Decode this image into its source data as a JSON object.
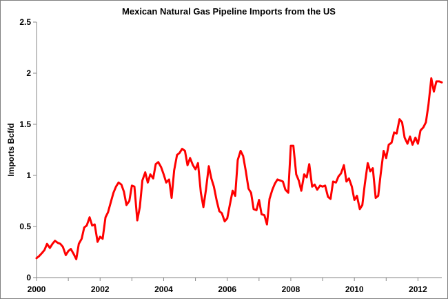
{
  "chart_data": {
    "type": "line",
    "title": "Mexican Natural Gas Pipeline Imports from the US",
    "xlabel": "",
    "ylabel": "Imports Bcf/d",
    "xlim": [
      2000,
      2012.75
    ],
    "ylim": [
      0,
      2.5
    ],
    "xticks": [
      "2000",
      "2002",
      "2004",
      "2006",
      "2008",
      "2010",
      "2012"
    ],
    "yticks": [
      "0",
      "0.5",
      "1",
      "1.5",
      "2",
      "2.5"
    ],
    "grid": false,
    "legend": "none",
    "series": [
      {
        "color": "#ff0000",
        "values": [
          [
            2000.0,
            0.19
          ],
          [
            2000.08,
            0.21
          ],
          [
            2000.17,
            0.24
          ],
          [
            2000.25,
            0.27
          ],
          [
            2000.33,
            0.33
          ],
          [
            2000.42,
            0.29
          ],
          [
            2000.5,
            0.33
          ],
          [
            2000.58,
            0.36
          ],
          [
            2000.67,
            0.34
          ],
          [
            2000.75,
            0.33
          ],
          [
            2000.83,
            0.3
          ],
          [
            2000.92,
            0.22
          ],
          [
            2001.0,
            0.26
          ],
          [
            2001.08,
            0.28
          ],
          [
            2001.17,
            0.23
          ],
          [
            2001.25,
            0.18
          ],
          [
            2001.33,
            0.33
          ],
          [
            2001.42,
            0.38
          ],
          [
            2001.5,
            0.49
          ],
          [
            2001.58,
            0.51
          ],
          [
            2001.67,
            0.59
          ],
          [
            2001.75,
            0.51
          ],
          [
            2001.83,
            0.52
          ],
          [
            2001.92,
            0.35
          ],
          [
            2002.0,
            0.4
          ],
          [
            2002.08,
            0.38
          ],
          [
            2002.17,
            0.59
          ],
          [
            2002.25,
            0.64
          ],
          [
            2002.33,
            0.73
          ],
          [
            2002.42,
            0.83
          ],
          [
            2002.5,
            0.89
          ],
          [
            2002.58,
            0.93
          ],
          [
            2002.67,
            0.91
          ],
          [
            2002.75,
            0.84
          ],
          [
            2002.83,
            0.71
          ],
          [
            2002.92,
            0.75
          ],
          [
            2003.0,
            0.9
          ],
          [
            2003.08,
            0.89
          ],
          [
            2003.17,
            0.56
          ],
          [
            2003.25,
            0.69
          ],
          [
            2003.33,
            0.95
          ],
          [
            2003.42,
            1.03
          ],
          [
            2003.5,
            0.93
          ],
          [
            2003.58,
            1.01
          ],
          [
            2003.67,
            0.97
          ],
          [
            2003.75,
            1.11
          ],
          [
            2003.83,
            1.13
          ],
          [
            2003.92,
            1.08
          ],
          [
            2004.0,
            1.01
          ],
          [
            2004.08,
            0.93
          ],
          [
            2004.17,
            0.96
          ],
          [
            2004.25,
            0.78
          ],
          [
            2004.33,
            1.05
          ],
          [
            2004.42,
            1.2
          ],
          [
            2004.5,
            1.22
          ],
          [
            2004.58,
            1.26
          ],
          [
            2004.67,
            1.24
          ],
          [
            2004.75,
            1.1
          ],
          [
            2004.83,
            1.17
          ],
          [
            2004.92,
            1.1
          ],
          [
            2005.0,
            1.06
          ],
          [
            2005.08,
            1.12
          ],
          [
            2005.17,
            0.83
          ],
          [
            2005.25,
            0.69
          ],
          [
            2005.33,
            0.86
          ],
          [
            2005.42,
            1.09
          ],
          [
            2005.5,
            0.97
          ],
          [
            2005.58,
            0.89
          ],
          [
            2005.67,
            0.75
          ],
          [
            2005.75,
            0.65
          ],
          [
            2005.83,
            0.63
          ],
          [
            2005.92,
            0.55
          ],
          [
            2006.0,
            0.58
          ],
          [
            2006.08,
            0.71
          ],
          [
            2006.17,
            0.85
          ],
          [
            2006.25,
            0.8
          ],
          [
            2006.33,
            1.15
          ],
          [
            2006.42,
            1.24
          ],
          [
            2006.5,
            1.19
          ],
          [
            2006.58,
            1.05
          ],
          [
            2006.67,
            0.87
          ],
          [
            2006.75,
            0.83
          ],
          [
            2006.83,
            0.67
          ],
          [
            2006.92,
            0.66
          ],
          [
            2007.0,
            0.76
          ],
          [
            2007.08,
            0.62
          ],
          [
            2007.17,
            0.61
          ],
          [
            2007.25,
            0.52
          ],
          [
            2007.33,
            0.77
          ],
          [
            2007.42,
            0.86
          ],
          [
            2007.5,
            0.92
          ],
          [
            2007.58,
            0.96
          ],
          [
            2007.67,
            0.95
          ],
          [
            2007.75,
            0.94
          ],
          [
            2007.83,
            0.86
          ],
          [
            2007.92,
            0.83
          ],
          [
            2008.0,
            1.29
          ],
          [
            2008.08,
            1.29
          ],
          [
            2008.17,
            1.01
          ],
          [
            2008.25,
            0.95
          ],
          [
            2008.33,
            0.85
          ],
          [
            2008.42,
            1.01
          ],
          [
            2008.5,
            0.98
          ],
          [
            2008.58,
            1.11
          ],
          [
            2008.67,
            0.89
          ],
          [
            2008.75,
            0.91
          ],
          [
            2008.83,
            0.86
          ],
          [
            2008.92,
            0.9
          ],
          [
            2009.0,
            0.89
          ],
          [
            2009.08,
            0.9
          ],
          [
            2009.17,
            0.79
          ],
          [
            2009.25,
            0.77
          ],
          [
            2009.33,
            0.94
          ],
          [
            2009.42,
            0.93
          ],
          [
            2009.5,
            0.99
          ],
          [
            2009.58,
            1.02
          ],
          [
            2009.67,
            1.1
          ],
          [
            2009.75,
            0.94
          ],
          [
            2009.83,
            0.97
          ],
          [
            2009.92,
            0.89
          ],
          [
            2010.0,
            0.76
          ],
          [
            2010.08,
            0.8
          ],
          [
            2010.17,
            0.67
          ],
          [
            2010.25,
            0.71
          ],
          [
            2010.33,
            0.92
          ],
          [
            2010.42,
            1.12
          ],
          [
            2010.5,
            1.04
          ],
          [
            2010.58,
            1.07
          ],
          [
            2010.67,
            0.78
          ],
          [
            2010.75,
            0.8
          ],
          [
            2010.83,
            1.02
          ],
          [
            2010.92,
            1.24
          ],
          [
            2011.0,
            1.17
          ],
          [
            2011.08,
            1.3
          ],
          [
            2011.17,
            1.32
          ],
          [
            2011.25,
            1.42
          ],
          [
            2011.33,
            1.41
          ],
          [
            2011.42,
            1.55
          ],
          [
            2011.5,
            1.52
          ],
          [
            2011.58,
            1.37
          ],
          [
            2011.67,
            1.31
          ],
          [
            2011.75,
            1.38
          ],
          [
            2011.83,
            1.3
          ],
          [
            2011.92,
            1.37
          ],
          [
            2012.0,
            1.31
          ],
          [
            2012.08,
            1.44
          ],
          [
            2012.17,
            1.47
          ],
          [
            2012.25,
            1.52
          ],
          [
            2012.33,
            1.69
          ],
          [
            2012.42,
            1.95
          ],
          [
            2012.5,
            1.82
          ],
          [
            2012.58,
            1.92
          ],
          [
            2012.67,
            1.92
          ],
          [
            2012.75,
            1.91
          ]
        ]
      }
    ]
  }
}
